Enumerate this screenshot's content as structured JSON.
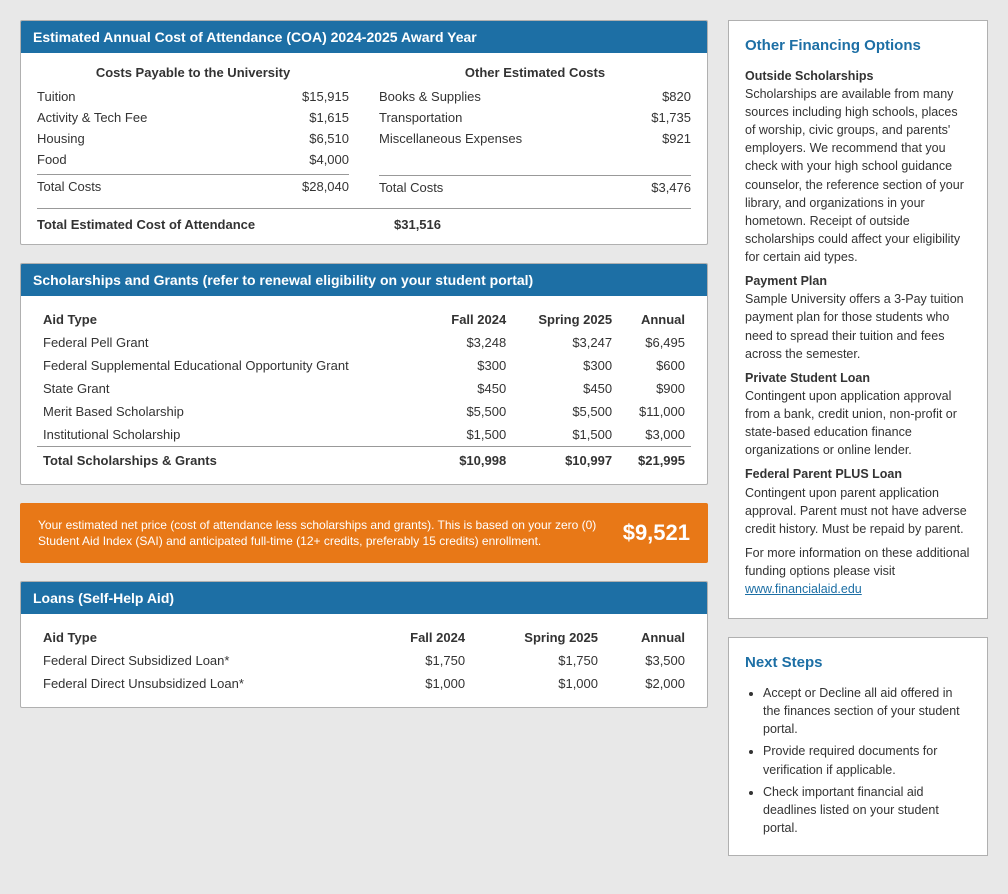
{
  "colors": {
    "header_bg": "#1d6fa5",
    "header_fg": "#ffffff",
    "panel_bg": "#ffffff",
    "panel_border": "#b0b0b0",
    "net_price_bg": "#e87817",
    "page_bg": "#e8e8e8",
    "link": "#1d6fa5"
  },
  "coa": {
    "header": "Estimated Annual Cost of Attendance (COA) 2024-2025 Award Year",
    "left_title": "Costs Payable to the University",
    "right_title": "Other Estimated Costs",
    "left_rows": [
      {
        "label": "Tuition",
        "value": "$15,915"
      },
      {
        "label": "Activity & Tech Fee",
        "value": "$1,615"
      },
      {
        "label": "Housing",
        "value": "$6,510"
      },
      {
        "label": "Food",
        "value": "$4,000"
      }
    ],
    "left_total": {
      "label": "Total Costs",
      "value": "$28,040"
    },
    "right_rows": [
      {
        "label": "Books & Supplies",
        "value": "$820"
      },
      {
        "label": "Transportation",
        "value": "$1,735"
      },
      {
        "label": "Miscellaneous Expenses",
        "value": "$921"
      }
    ],
    "right_total": {
      "label": "Total Costs",
      "value": "$3,476"
    },
    "grand_label": "Total Estimated Cost of Attendance",
    "grand_value": "$31,516"
  },
  "scholarships": {
    "header": "Scholarships and Grants (refer to renewal eligibility on your student portal)",
    "columns": [
      "Aid Type",
      "Fall 2024",
      "Spring 2025",
      "Annual"
    ],
    "rows": [
      [
        "Federal Pell Grant",
        "$3,248",
        "$3,247",
        "$6,495"
      ],
      [
        "Federal Supplemental Educational Opportunity Grant",
        "$300",
        "$300",
        "$600"
      ],
      [
        "State Grant",
        "$450",
        "$450",
        "$900"
      ],
      [
        "Merit Based Scholarship",
        "$5,500",
        "$5,500",
        "$11,000"
      ],
      [
        "Institutional Scholarship",
        "$1,500",
        "$1,500",
        "$3,000"
      ]
    ],
    "footer": [
      "Total Scholarships & Grants",
      "$10,998",
      "$10,997",
      "$21,995"
    ]
  },
  "net_price": {
    "desc": "Your estimated net price (cost of attendance less scholarships and grants). This is based on your zero (0) Student Aid Index (SAI) and anticipated full-time (12+ credits, preferably 15 credits) enrollment.",
    "amount": "$9,521"
  },
  "loans": {
    "header": "Loans (Self-Help Aid)",
    "columns": [
      "Aid Type",
      "Fall 2024",
      "Spring 2025",
      "Annual"
    ],
    "rows": [
      [
        "Federal Direct Subsidized Loan*",
        "$1,750",
        "$1,750",
        "$3,500"
      ],
      [
        "Federal Direct Unsubsidized Loan*",
        "$1,000",
        "$1,000",
        "$2,000"
      ]
    ]
  },
  "other_financing": {
    "title": "Other Financing Options",
    "outside_title": "Outside Scholarships",
    "outside_text": "Scholarships are available from many sources including high schools, places of worship, civic groups, and parents' employers. We recommend that you check with your high school guidance counselor, the reference section of your library, and organizations in your hometown. Receipt of outside scholarships could affect your eligibility for certain aid types.",
    "payment_title": "Payment Plan",
    "payment_text": "Sample University offers a 3-Pay tuition payment plan for those students who need to spread their tuition and fees across the semester.",
    "private_title": "Private Student Loan",
    "private_text": "Contingent upon application approval from a bank, credit union, non-profit or state-based education finance organizations or online lender.",
    "plus_title": "Federal Parent PLUS Loan",
    "plus_text": "Contingent upon parent application approval. Parent must not have adverse credit history. Must be repaid by parent.",
    "more_text": "For more information on these additional funding options please visit",
    "more_link": "www.financialaid.edu"
  },
  "next_steps": {
    "title": "Next Steps",
    "items": [
      "Accept or Decline all aid offered in the finances section of your student portal.",
      "Provide required documents for verification if applicable.",
      "Check important financial aid deadlines listed on your student portal."
    ]
  }
}
